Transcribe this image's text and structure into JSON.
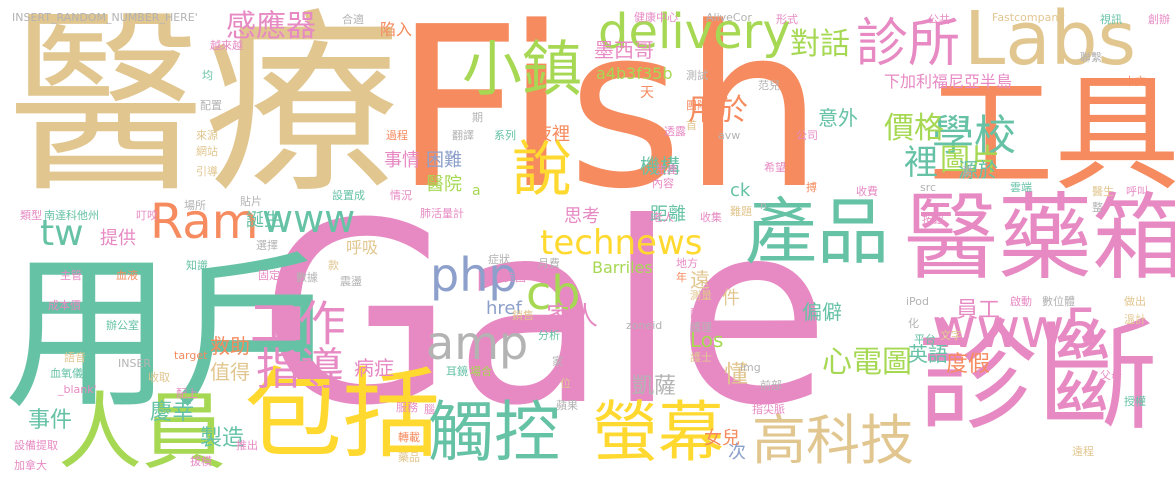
{
  "palette": {
    "tan": "#e1c68f",
    "orange": "#f58b5e",
    "pink": "#e78ac3",
    "teal": "#66c2a5",
    "lime": "#a6d854",
    "yellow": "#ffd92f",
    "gray": "#b3b3b3",
    "blue": "#8da0cb"
  },
  "words": [
    {
      "text": "醫療",
      "color": "#e1c68f"
    },
    {
      "text": "Fish",
      "color": "#f58b5e"
    },
    {
      "text": "Gale",
      "color": "#e78ac3"
    },
    {
      "text": "用戶",
      "color": "#66c2a5"
    },
    {
      "text": "工具",
      "color": "#f58b5e"
    },
    {
      "text": "Labs",
      "color": "#e1c68f"
    },
    {
      "text": "醫藥箱",
      "color": "#e78ac3"
    },
    {
      "text": "診斷",
      "color": "#e78ac3"
    },
    {
      "text": "包括",
      "color": "#ffd92f"
    },
    {
      "text": "人員",
      "color": "#a6d854"
    },
    {
      "text": "觸控",
      "color": "#66c2a5"
    },
    {
      "text": "螢幕",
      "color": "#ffd92f"
    },
    {
      "text": "產品",
      "color": "#66c2a5"
    },
    {
      "text": "高科技",
      "color": "#e1c68f"
    },
    {
      "text": "www5",
      "color": "#e78ac3"
    },
    {
      "text": "delivery",
      "color": "#a6d854"
    },
    {
      "text": "診所",
      "color": "#e78ac3"
    },
    {
      "text": "小鎮",
      "color": "#a6d854"
    },
    {
      "text": "說",
      "color": "#ffd92f"
    },
    {
      "text": "Ram",
      "color": "#f58b5e"
    },
    {
      "text": "www",
      "color": "#66c2a5"
    },
    {
      "text": "tw",
      "color": "#66c2a5"
    },
    {
      "text": "technews",
      "color": "#ffd92f"
    },
    {
      "text": "php",
      "color": "#8da0cb"
    },
    {
      "text": "cb",
      "color": "#a6d854"
    },
    {
      "text": "amp",
      "color": "#b3b3b3"
    },
    {
      "text": "工作",
      "color": "#e78ac3"
    },
    {
      "text": "指導",
      "color": "#e78ac3"
    },
    {
      "text": "感應器",
      "color": "#e78ac3"
    },
    {
      "text": "學校",
      "color": "#66c2a5"
    },
    {
      "text": "對話",
      "color": "#a6d854"
    },
    {
      "text": "價格",
      "color": "#a6d854"
    },
    {
      "text": "圖片",
      "color": "#a6d854"
    },
    {
      "text": "裡",
      "color": "#66c2a5"
    },
    {
      "text": "用於",
      "color": "#f58b5e"
    },
    {
      "text": "心電圖",
      "color": "#a6d854"
    },
    {
      "text": "家人",
      "color": "#e78ac3"
    },
    {
      "text": "墨西哥",
      "color": "#e78ac3"
    },
    {
      "text": "a4b3f35b",
      "color": "#a6d854"
    },
    {
      "text": "下加利福尼亞半島",
      "color": "#e78ac3"
    },
    {
      "text": "事件",
      "color": "#66c2a5"
    },
    {
      "text": "慶幸",
      "color": "#66c2a5"
    },
    {
      "text": "製造",
      "color": "#66c2a5"
    },
    {
      "text": "誕生",
      "color": "#66c2a5"
    },
    {
      "text": "提供",
      "color": "#e78ac3"
    },
    {
      "text": "呼吸",
      "color": "#e1c68f"
    },
    {
      "text": "救助",
      "color": "#f58b5e"
    },
    {
      "text": "值得",
      "color": "#e1c68f"
    },
    {
      "text": "病症",
      "color": "#e78ac3"
    },
    {
      "text": "凱薩",
      "color": "#b3b3b3"
    },
    {
      "text": "Barriles",
      "color": "#a6d854"
    },
    {
      "text": "Los",
      "color": "#a6d854"
    },
    {
      "text": "href",
      "color": "#8da0cb"
    },
    {
      "text": "員工",
      "color": "#e78ac3"
    },
    {
      "text": "英語",
      "color": "#66c2a5"
    },
    {
      "text": "度假",
      "color": "#f58b5e"
    },
    {
      "text": "偏僻",
      "color": "#66c2a5"
    },
    {
      "text": "意外",
      "color": "#66c2a5"
    },
    {
      "text": "源於",
      "color": "#66c2a5"
    },
    {
      "text": "機構",
      "color": "#66c2a5"
    },
    {
      "text": "困難",
      "color": "#8da0cb"
    },
    {
      "text": "醫院",
      "color": "#a6d854"
    },
    {
      "text": "事情",
      "color": "#e78ac3"
    },
    {
      "text": "夜裡",
      "color": "#f58b5e"
    },
    {
      "text": "距離",
      "color": "#66c2a5"
    },
    {
      "text": "思考",
      "color": "#e78ac3"
    },
    {
      "text": "女兒",
      "color": "#f58b5e"
    },
    {
      "text": "懂",
      "color": "#e1c68f"
    },
    {
      "text": "次",
      "color": "#8da0cb"
    },
    {
      "text": "ck",
      "color": "#66c2a5"
    },
    {
      "text": "遠",
      "color": "#e1c68f"
    },
    {
      "text": "件",
      "color": "#e1c68f"
    },
    {
      "text": "INSERT_RANDOM_NUMBER_HERE'",
      "color": "#b3b3b3"
    },
    {
      "text": "AliveCor",
      "color": "#b3b3b3"
    },
    {
      "text": "Fastcompany",
      "color": "#e1c68f"
    },
    {
      "text": "健康中心",
      "color": "#e78ac3"
    },
    {
      "text": "陷入",
      "color": "#f58b5e"
    },
    {
      "text": "天",
      "color": "#f58b5e"
    },
    {
      "text": "zoneid",
      "color": "#b3b3b3"
    },
    {
      "text": "iPod",
      "color": "#b3b3b3"
    },
    {
      "text": "img",
      "color": "#b3b3b3"
    },
    {
      "text": "avw",
      "color": "#b3b3b3"
    },
    {
      "text": "src",
      "color": "#b3b3b3"
    },
    {
      "text": "target",
      "color": "#f58b5e"
    },
    {
      "text": "_blank'",
      "color": "#e78ac3"
    },
    {
      "text": "INSER",
      "color": "#b3b3b3"
    },
    {
      "text": "南達科他州",
      "color": "#66c2a5"
    },
    {
      "text": "加拿大",
      "color": "#e78ac3"
    },
    {
      "text": "越來越",
      "color": "#e78ac3"
    },
    {
      "text": "均",
      "color": "#66c2a5"
    },
    {
      "text": "配置",
      "color": "#b3b3b3"
    },
    {
      "text": "來源",
      "color": "#e1c68f"
    },
    {
      "text": "網站",
      "color": "#e1c68f"
    },
    {
      "text": "引導",
      "color": "#e1c68f"
    },
    {
      "text": "類型",
      "color": "#e78ac3"
    },
    {
      "text": "叮咬",
      "color": "#e78ac3"
    },
    {
      "text": "場所",
      "color": "#b3b3b3"
    },
    {
      "text": "主管",
      "color": "#e78ac3"
    },
    {
      "text": "血液",
      "color": "#f58b5e"
    },
    {
      "text": "成本價",
      "color": "#e78ac3"
    },
    {
      "text": "辦公室",
      "color": "#66c2a5"
    },
    {
      "text": "語音",
      "color": "#e1c68f"
    },
    {
      "text": "血氧儀",
      "color": "#66c2a5"
    },
    {
      "text": "設備提取",
      "color": "#e78ac3"
    },
    {
      "text": "拔模",
      "color": "#e78ac3"
    },
    {
      "text": "推出",
      "color": "#e78ac3"
    },
    {
      "text": "收取",
      "color": "#e1c68f"
    },
    {
      "text": "配上",
      "color": "#e78ac3"
    },
    {
      "text": "知識",
      "color": "#66c2a5"
    },
    {
      "text": "固定",
      "color": "#e78ac3"
    },
    {
      "text": "選擇",
      "color": "#b3b3b3"
    },
    {
      "text": "貼片",
      "color": "#b3b3b3"
    },
    {
      "text": "款",
      "color": "#e1c68f"
    },
    {
      "text": "數據",
      "color": "#b3b3b3"
    },
    {
      "text": "震盪",
      "color": "#b3b3b3"
    },
    {
      "text": "耳鏡",
      "color": "#66c2a5"
    },
    {
      "text": "場合",
      "color": "#a6d854"
    },
    {
      "text": "蘋果",
      "color": "#b3b3b3"
    },
    {
      "text": "服務",
      "color": "#e78ac3"
    },
    {
      "text": "轉載",
      "color": "#f58b5e"
    },
    {
      "text": "藥品",
      "color": "#e1c68f"
    },
    {
      "text": "腦",
      "color": "#e78ac3"
    },
    {
      "text": "位",
      "color": "#e1c68f"
    },
    {
      "text": "家",
      "color": "#b3b3b3"
    },
    {
      "text": "分析",
      "color": "#66c2a5"
    },
    {
      "text": "月費",
      "color": "#b3b3b3"
    },
    {
      "text": "美國",
      "color": "#e78ac3"
    },
    {
      "text": "症狀",
      "color": "#b3b3b3"
    },
    {
      "text": "銷售",
      "color": "#e1c68f"
    },
    {
      "text": "地方",
      "color": "#e78ac3"
    },
    {
      "text": "年",
      "color": "#f58b5e"
    },
    {
      "text": "測量",
      "color": "#e1c68f"
    },
    {
      "text": "配抵",
      "color": "#e78ac3"
    },
    {
      "text": "護理",
      "color": "#b3b3b3"
    },
    {
      "text": "護士",
      "color": "#e1c68f"
    },
    {
      "text": "指尖脈",
      "color": "#e78ac3"
    },
    {
      "text": "前部",
      "color": "#b3b3b3"
    },
    {
      "text": "化",
      "color": "#b3b3b3"
    },
    {
      "text": "平台",
      "color": "#66c2a5"
    },
    {
      "text": "文字",
      "color": "#e1c68f"
    },
    {
      "text": "父母",
      "color": "#e78ac3"
    },
    {
      "text": "授權",
      "color": "#66c2a5"
    },
    {
      "text": "數位體",
      "color": "#b3b3b3"
    },
    {
      "text": "溫計",
      "color": "#e1c68f"
    },
    {
      "text": "做出",
      "color": "#e1c68f"
    },
    {
      "text": "啟動",
      "color": "#e78ac3"
    },
    {
      "text": "遠程",
      "color": "#e1c68f"
    },
    {
      "text": "呼叫",
      "color": "#e78ac3"
    },
    {
      "text": "整",
      "color": "#b3b3b3"
    },
    {
      "text": "醫生",
      "color": "#e1c68f"
    },
    {
      "text": "雲端",
      "color": "#66c2a5"
    },
    {
      "text": "愛",
      "color": "#b3b3b3"
    },
    {
      "text": "按鈕",
      "color": "#e78ac3"
    },
    {
      "text": "收費",
      "color": "#e78ac3"
    },
    {
      "text": "搏",
      "color": "#f58b5e"
    },
    {
      "text": "n",
      "color": "#b3b3b3"
    },
    {
      "text": "合適",
      "color": "#b3b3b3"
    },
    {
      "text": "形式",
      "color": "#e78ac3"
    },
    {
      "text": "公共",
      "color": "#e78ac3"
    },
    {
      "text": "聯繫",
      "color": "#b3b3b3"
    },
    {
      "text": "本文",
      "color": "#f58b5e"
    },
    {
      "text": "視訊",
      "color": "#66c2a5"
    },
    {
      "text": "創辦",
      "color": "#e78ac3"
    },
    {
      "text": "范兒",
      "color": "#b3b3b3"
    },
    {
      "text": "測試",
      "color": "#b3b3b3"
    },
    {
      "text": "團隊",
      "color": "#f58b5e"
    },
    {
      "text": "透露",
      "color": "#e78ac3"
    },
    {
      "text": "首",
      "color": "#e1c68f"
    },
    {
      "text": "希望",
      "color": "#e78ac3"
    },
    {
      "text": "公司",
      "color": "#e78ac3"
    },
    {
      "text": "生產",
      "color": "#e78ac3"
    },
    {
      "text": "內容",
      "color": "#e78ac3"
    },
    {
      "text": "系列",
      "color": "#66c2a5"
    },
    {
      "text": "翻譯",
      "color": "#b3b3b3"
    },
    {
      "text": "期",
      "color": "#b3b3b3"
    },
    {
      "text": "過程",
      "color": "#f58b5e"
    },
    {
      "text": "設置成",
      "color": "#66c2a5"
    },
    {
      "text": "情況",
      "color": "#e78ac3"
    },
    {
      "text": "肺活量計",
      "color": "#e78ac3"
    },
    {
      "text": "老人",
      "color": "#e78ac3"
    },
    {
      "text": "收集",
      "color": "#e78ac3"
    },
    {
      "text": "難題",
      "color": "#e1c68f"
    },
    {
      "text": "a",
      "color": "#a6d854"
    }
  ]
}
